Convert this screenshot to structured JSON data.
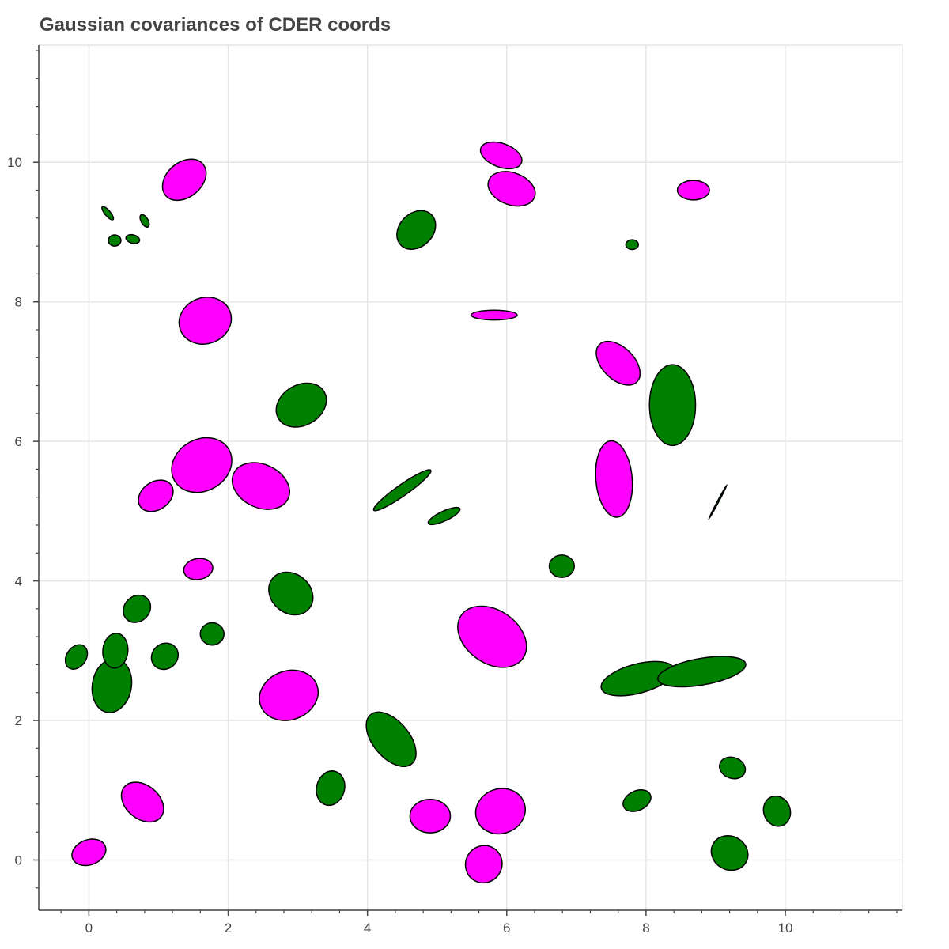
{
  "chart_data": {
    "type": "scatter",
    "title": "Gaussian covariances of CDER coords",
    "xlabel": "",
    "ylabel": "",
    "xlim": [
      -0.72,
      11.68
    ],
    "ylim": [
      -0.72,
      11.68
    ],
    "x_ticks": [
      "0",
      "2",
      "4",
      "6",
      "8",
      "10"
    ],
    "y_ticks": [
      "0",
      "2",
      "4",
      "6",
      "8",
      "10"
    ],
    "grid": true,
    "legend": "none",
    "colors": {
      "magenta": "#ff00ff",
      "green": "#008000",
      "outline": "#000000",
      "grid": "#e5e5e5",
      "axis": "#444444"
    },
    "series": [
      {
        "color": "magenta",
        "ellipses": [
          {
            "cx": 0.0,
            "cy": 0.11,
            "rx": 0.18,
            "ry": 0.25,
            "angle": -70
          },
          {
            "cx": 0.77,
            "cy": 0.83,
            "rx": 0.34,
            "ry": 0.24,
            "angle": -40
          },
          {
            "cx": 4.9,
            "cy": 0.63,
            "rx": 0.29,
            "ry": 0.24,
            "angle": 0
          },
          {
            "cx": 5.67,
            "cy": -0.06,
            "rx": 0.27,
            "ry": 0.26,
            "angle": 60
          },
          {
            "cx": 5.91,
            "cy": 0.7,
            "rx": 0.36,
            "ry": 0.32,
            "angle": 20
          },
          {
            "cx": 2.87,
            "cy": 2.36,
            "rx": 0.43,
            "ry": 0.35,
            "angle": 20
          },
          {
            "cx": 5.79,
            "cy": 3.2,
            "rx": 0.54,
            "ry": 0.38,
            "angle": -35
          },
          {
            "cx": 1.57,
            "cy": 4.17,
            "rx": 0.21,
            "ry": 0.15,
            "angle": 10
          },
          {
            "cx": 0.96,
            "cy": 5.22,
            "rx": 0.27,
            "ry": 0.2,
            "angle": 35
          },
          {
            "cx": 1.62,
            "cy": 5.66,
            "rx": 0.45,
            "ry": 0.37,
            "angle": 30
          },
          {
            "cx": 2.47,
            "cy": 5.36,
            "rx": 0.43,
            "ry": 0.31,
            "angle": -25
          },
          {
            "cx": 7.54,
            "cy": 5.46,
            "rx": 0.55,
            "ry": 0.26,
            "angle": 95
          },
          {
            "cx": 7.6,
            "cy": 7.12,
            "rx": 0.38,
            "ry": 0.23,
            "angle": -45
          },
          {
            "cx": 1.67,
            "cy": 7.73,
            "rx": 0.38,
            "ry": 0.33,
            "angle": 20
          },
          {
            "cx": 5.82,
            "cy": 7.81,
            "rx": 0.33,
            "ry": 0.07,
            "angle": 0
          },
          {
            "cx": 1.37,
            "cy": 9.75,
            "rx": 0.35,
            "ry": 0.25,
            "angle": 40
          },
          {
            "cx": 5.92,
            "cy": 10.1,
            "rx": 0.31,
            "ry": 0.17,
            "angle": -20
          },
          {
            "cx": 6.07,
            "cy": 9.62,
            "rx": 0.35,
            "ry": 0.23,
            "angle": -20
          },
          {
            "cx": 8.68,
            "cy": 9.6,
            "rx": 0.23,
            "ry": 0.14,
            "angle": 0
          }
        ]
      },
      {
        "color": "green",
        "ellipses": [
          {
            "cx": 0.33,
            "cy": 2.5,
            "rx": 0.39,
            "ry": 0.28,
            "angle": 80
          },
          {
            "cx": 0.38,
            "cy": 3.0,
            "rx": 0.25,
            "ry": 0.18,
            "angle": 85
          },
          {
            "cx": -0.18,
            "cy": 2.91,
            "rx": 0.19,
            "ry": 0.14,
            "angle": 55
          },
          {
            "cx": 0.69,
            "cy": 3.6,
            "rx": 0.21,
            "ry": 0.18,
            "angle": 45
          },
          {
            "cx": 1.09,
            "cy": 2.92,
            "rx": 0.2,
            "ry": 0.18,
            "angle": 40
          },
          {
            "cx": 1.77,
            "cy": 3.24,
            "rx": 0.17,
            "ry": 0.16,
            "angle": 0
          },
          {
            "cx": 2.9,
            "cy": 3.82,
            "rx": 0.34,
            "ry": 0.28,
            "angle": -40
          },
          {
            "cx": 3.47,
            "cy": 1.03,
            "rx": 0.25,
            "ry": 0.2,
            "angle": 75
          },
          {
            "cx": 4.34,
            "cy": 1.73,
            "rx": 0.46,
            "ry": 0.26,
            "angle": -50
          },
          {
            "cx": 4.5,
            "cy": 5.3,
            "rx": 0.5,
            "ry": 0.08,
            "angle": 35
          },
          {
            "cx": 5.1,
            "cy": 4.93,
            "rx": 0.25,
            "ry": 0.07,
            "angle": 25
          },
          {
            "cx": 6.79,
            "cy": 4.21,
            "rx": 0.18,
            "ry": 0.16,
            "angle": 0
          },
          {
            "cx": 7.88,
            "cy": 2.6,
            "rx": 0.54,
            "ry": 0.21,
            "angle": 15
          },
          {
            "cx": 8.8,
            "cy": 2.7,
            "rx": 0.64,
            "ry": 0.19,
            "angle": 10
          },
          {
            "cx": 7.87,
            "cy": 0.85,
            "rx": 0.21,
            "ry": 0.14,
            "angle": 25
          },
          {
            "cx": 9.2,
            "cy": 0.1,
            "rx": 0.27,
            "ry": 0.24,
            "angle": -30
          },
          {
            "cx": 9.24,
            "cy": 1.32,
            "rx": 0.19,
            "ry": 0.15,
            "angle": -20
          },
          {
            "cx": 9.88,
            "cy": 0.7,
            "rx": 0.22,
            "ry": 0.19,
            "angle": -70
          },
          {
            "cx": 8.38,
            "cy": 6.52,
            "rx": 0.58,
            "ry": 0.33,
            "angle": 90
          },
          {
            "cx": 3.05,
            "cy": 6.52,
            "rx": 0.38,
            "ry": 0.29,
            "angle": 30
          },
          {
            "cx": 4.7,
            "cy": 9.03,
            "rx": 0.31,
            "ry": 0.24,
            "angle": 45
          },
          {
            "cx": 7.8,
            "cy": 8.82,
            "rx": 0.09,
            "ry": 0.07,
            "angle": 0
          },
          {
            "cx": 0.37,
            "cy": 8.88,
            "rx": 0.09,
            "ry": 0.08,
            "angle": 0
          },
          {
            "cx": 0.63,
            "cy": 8.9,
            "rx": 0.1,
            "ry": 0.06,
            "angle": -15
          },
          {
            "cx": 0.27,
            "cy": 9.27,
            "rx": 0.12,
            "ry": 0.04,
            "angle": -50
          },
          {
            "cx": 0.8,
            "cy": 9.16,
            "rx": 0.1,
            "ry": 0.05,
            "angle": -60
          },
          {
            "cx": 9.03,
            "cy": 5.13,
            "rx": 0.28,
            "ry": 0.01,
            "angle": 62
          }
        ]
      }
    ]
  }
}
